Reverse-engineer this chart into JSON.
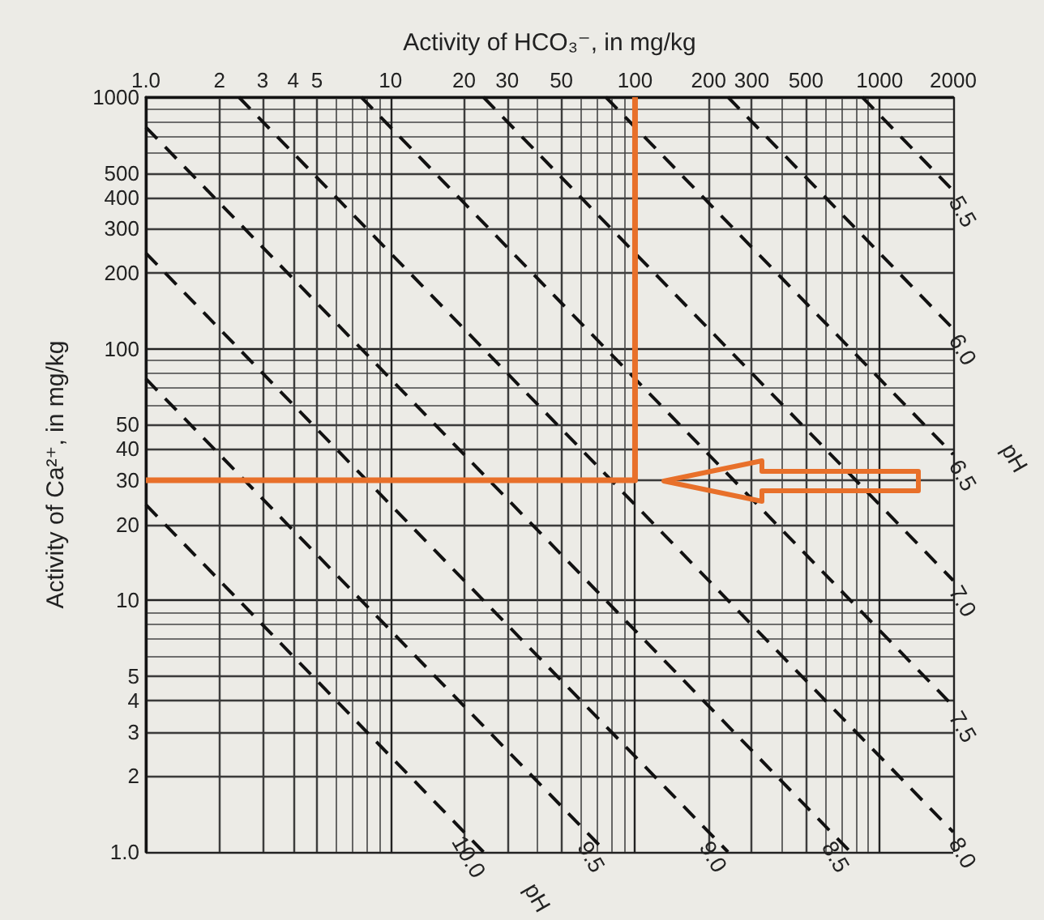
{
  "chart_data": {
    "type": "line",
    "xlabel": "Activity of HCO₃⁻, in mg/kg",
    "ylabel": "Activity of Ca²⁺, in mg/kg",
    "xlim": [
      1,
      2000
    ],
    "xticks": [
      {
        "value": 1,
        "label": "1.0"
      },
      2,
      3,
      4,
      5,
      10,
      20,
      30,
      50,
      100,
      200,
      300,
      500,
      1000,
      2000
    ],
    "ylim": [
      1,
      1000
    ],
    "yticks": [
      {
        "value": 1,
        "label": "1.0"
      },
      2,
      3,
      4,
      5,
      10,
      20,
      30,
      40,
      50,
      100,
      200,
      300,
      400,
      500,
      1000
    ],
    "log": "xy",
    "grid": true,
    "legend": false,
    "marker": "none",
    "series": [
      {
        "name": "5.5",
        "color": "#111111",
        "line_style": "dashed",
        "x": [
          850,
          2000
        ],
        "values": [
          1000,
          425
        ]
      },
      {
        "name": "6.0",
        "color": "#111111",
        "line_style": "dashed",
        "x": [
          240,
          2000
        ],
        "values": [
          1000,
          120
        ]
      },
      {
        "name": "6.5",
        "color": "#111111",
        "line_style": "dashed",
        "x": [
          76,
          2000
        ],
        "values": [
          1000,
          38
        ]
      },
      {
        "name": "7.0",
        "color": "#111111",
        "line_style": "dashed",
        "x": [
          24,
          2000
        ],
        "values": [
          1000,
          12
        ]
      },
      {
        "name": "7.5",
        "color": "#111111",
        "line_style": "dashed",
        "x": [
          7.6,
          2000
        ],
        "values": [
          1000,
          3.8
        ]
      },
      {
        "name": "8.0",
        "color": "#111111",
        "line_style": "dashed",
        "x": [
          2.4,
          2000
        ],
        "values": [
          1000,
          1.2
        ]
      },
      {
        "name": "8.5",
        "color": "#111111",
        "line_style": "dashed",
        "x": [
          1,
          760
        ],
        "values": [
          760,
          1
        ]
      },
      {
        "name": "9.0",
        "color": "#111111",
        "line_style": "dashed",
        "x": [
          1,
          240
        ],
        "values": [
          240,
          1
        ]
      },
      {
        "name": "9.5",
        "color": "#111111",
        "line_style": "dashed",
        "x": [
          1,
          76
        ],
        "values": [
          76,
          1
        ]
      },
      {
        "name": "10.0",
        "color": "#111111",
        "line_style": "dashed",
        "x": [
          1,
          24
        ],
        "values": [
          24,
          1
        ]
      },
      {
        "color": "#e8702a",
        "line_style": "solid",
        "x": [
          1,
          100,
          100
        ],
        "values": [
          30,
          30,
          1000
        ]
      }
    ],
    "annotations": [
      "pH",
      "pH"
    ]
  }
}
